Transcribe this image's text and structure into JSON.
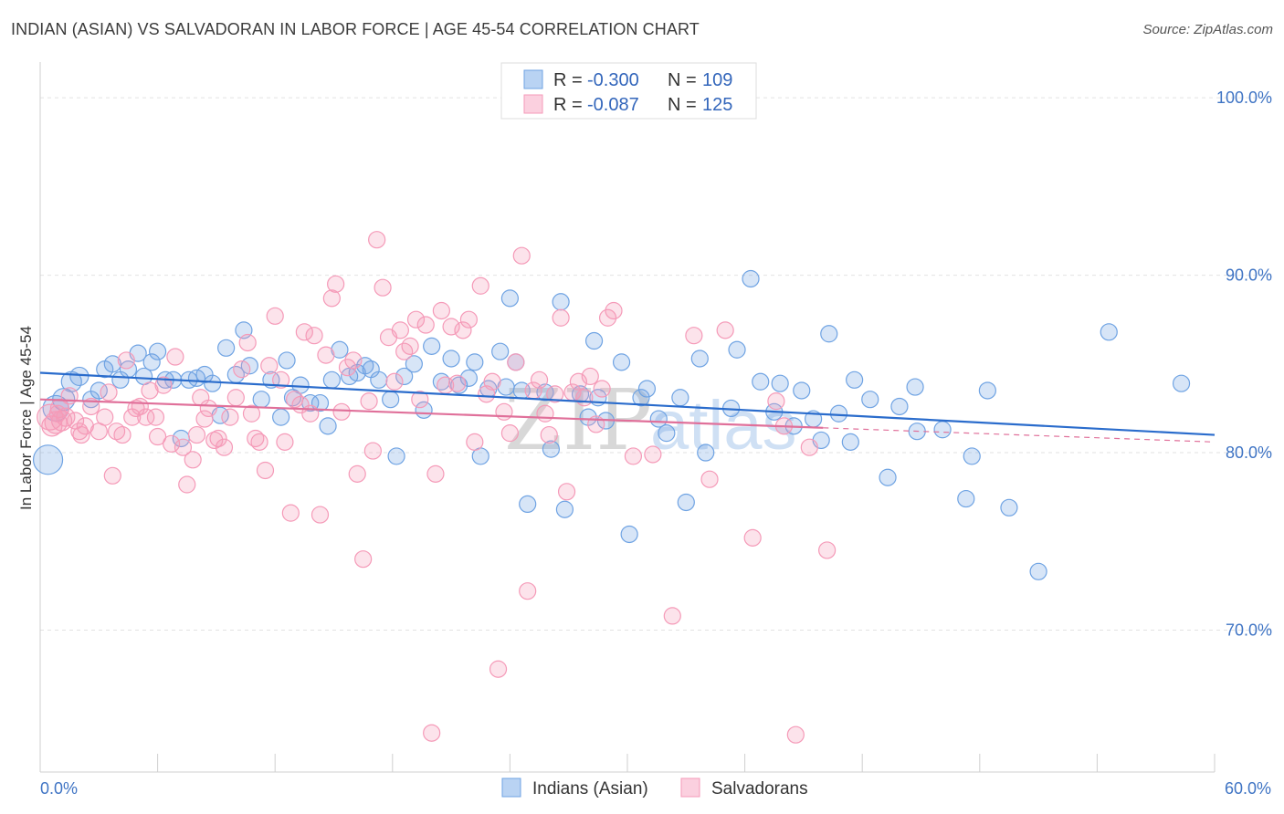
{
  "header": {
    "title": "INDIAN (ASIAN) VS SALVADORAN IN LABOR FORCE | AGE 45-54 CORRELATION CHART",
    "source": "Source: ZipAtlas.com"
  },
  "legend": {
    "series1": {
      "r_label": "R =",
      "r_value": "-0.300",
      "n_label": "N =",
      "n_value": "109"
    },
    "series2": {
      "r_label": "R =",
      "r_value": "-0.087",
      "n_label": "N =",
      "n_value": "125"
    }
  },
  "watermark": {
    "zip": "ZIP",
    "atlas": "atlas"
  },
  "chart_data": {
    "type": "scatter",
    "xlabel": "",
    "ylabel": "In Labor Force | Age 45-54",
    "xlim": [
      0,
      60
    ],
    "ylim": [
      62,
      101.5
    ],
    "x_tick_labels": {
      "min": "0.0%",
      "max": "60.0%"
    },
    "y_ticks": [
      {
        "value": 100,
        "label": "100.0%"
      },
      {
        "value": 90,
        "label": "90.0%"
      },
      {
        "value": 80,
        "label": "80.0%"
      },
      {
        "value": 70,
        "label": "70.0%"
      }
    ],
    "grid": true,
    "legend_position": "top-center",
    "series": [
      {
        "name": "Indians (Asian)",
        "color": "#6fa3e3",
        "line_color": "#2a6ccc",
        "trend": {
          "x": [
            0,
            60
          ],
          "y": [
            84.5,
            81.0
          ]
        },
        "points": [
          [
            0.4,
            79.6,
            16
          ],
          [
            0.8,
            82.5,
            14
          ],
          [
            1.2,
            83.0,
            12
          ],
          [
            1.6,
            84.0,
            11
          ],
          [
            2.0,
            84.3,
            10
          ],
          [
            2.6,
            83.0,
            9
          ],
          [
            3.0,
            83.5,
            9
          ],
          [
            3.3,
            84.7,
            9
          ],
          [
            3.7,
            85.0,
            9
          ],
          [
            4.1,
            84.1,
            9
          ],
          [
            4.5,
            84.7,
            9
          ],
          [
            5.0,
            85.6,
            9
          ],
          [
            5.3,
            84.3,
            9
          ],
          [
            5.7,
            85.1,
            9
          ],
          [
            6.0,
            85.7,
            9
          ],
          [
            6.4,
            84.1,
            9
          ],
          [
            6.8,
            84.1,
            9
          ],
          [
            7.2,
            80.8,
            9
          ],
          [
            7.6,
            84.1,
            9
          ],
          [
            8.0,
            84.2,
            9
          ],
          [
            8.4,
            84.4,
            9
          ],
          [
            8.8,
            83.9,
            9
          ],
          [
            9.2,
            82.1,
            9
          ],
          [
            9.5,
            85.9,
            9
          ],
          [
            10.0,
            84.4,
            9
          ],
          [
            10.4,
            86.9,
            9
          ],
          [
            10.7,
            84.9,
            9
          ],
          [
            11.3,
            83.0,
            9
          ],
          [
            11.8,
            84.1,
            9
          ],
          [
            12.3,
            82.0,
            9
          ],
          [
            12.6,
            85.2,
            9
          ],
          [
            12.9,
            83.1,
            9
          ],
          [
            13.3,
            83.8,
            9
          ],
          [
            13.8,
            82.8,
            9
          ],
          [
            14.3,
            82.8,
            9
          ],
          [
            14.7,
            81.5,
            9
          ],
          [
            14.9,
            84.1,
            9
          ],
          [
            15.3,
            85.8,
            9
          ],
          [
            15.8,
            84.3,
            9
          ],
          [
            16.2,
            84.5,
            9
          ],
          [
            16.6,
            84.9,
            9
          ],
          [
            16.9,
            84.7,
            9
          ],
          [
            17.3,
            84.1,
            9
          ],
          [
            17.9,
            83.0,
            9
          ],
          [
            18.2,
            79.8,
            9
          ],
          [
            18.6,
            84.3,
            9
          ],
          [
            19.1,
            85.0,
            9
          ],
          [
            19.6,
            82.4,
            9
          ],
          [
            20.0,
            86.0,
            9
          ],
          [
            20.5,
            84.0,
            9
          ],
          [
            21.0,
            85.3,
            9
          ],
          [
            21.4,
            83.8,
            9
          ],
          [
            21.9,
            84.2,
            9
          ],
          [
            22.2,
            85.1,
            9
          ],
          [
            22.5,
            79.8,
            9
          ],
          [
            22.9,
            83.6,
            9
          ],
          [
            23.5,
            85.7,
            9
          ],
          [
            23.8,
            83.7,
            9
          ],
          [
            24.0,
            88.7,
            9
          ],
          [
            24.3,
            85.1,
            9
          ],
          [
            24.6,
            83.5,
            9
          ],
          [
            24.9,
            77.1,
            9
          ],
          [
            25.8,
            83.4,
            9
          ],
          [
            26.1,
            80.2,
            9
          ],
          [
            26.6,
            88.5,
            9
          ],
          [
            26.8,
            76.8,
            9
          ],
          [
            27.6,
            83.3,
            9
          ],
          [
            28.0,
            82.0,
            9
          ],
          [
            28.3,
            86.3,
            9
          ],
          [
            28.5,
            83.1,
            9
          ],
          [
            28.9,
            81.8,
            9
          ],
          [
            29.7,
            85.1,
            9
          ],
          [
            30.1,
            75.4,
            9
          ],
          [
            30.7,
            83.1,
            9
          ],
          [
            31.0,
            83.6,
            9
          ],
          [
            31.6,
            81.9,
            9
          ],
          [
            32.0,
            81.1,
            9
          ],
          [
            32.7,
            83.1,
            9
          ],
          [
            33.0,
            77.2,
            9
          ],
          [
            33.7,
            85.3,
            9
          ],
          [
            34.0,
            80.0,
            9
          ],
          [
            35.3,
            82.5,
            9
          ],
          [
            35.6,
            85.8,
            9
          ],
          [
            36.3,
            89.8,
            9
          ],
          [
            36.8,
            84.0,
            9
          ],
          [
            37.5,
            82.3,
            9
          ],
          [
            37.8,
            83.9,
            9
          ],
          [
            38.5,
            81.5,
            9
          ],
          [
            38.9,
            83.5,
            9
          ],
          [
            39.5,
            81.9,
            9
          ],
          [
            39.9,
            80.7,
            9
          ],
          [
            40.3,
            86.7,
            9
          ],
          [
            40.8,
            82.2,
            9
          ],
          [
            41.4,
            80.6,
            9
          ],
          [
            41.6,
            84.1,
            9
          ],
          [
            42.4,
            83.0,
            9
          ],
          [
            43.3,
            78.6,
            9
          ],
          [
            43.9,
            82.6,
            9
          ],
          [
            44.7,
            83.7,
            9
          ],
          [
            44.8,
            81.2,
            9
          ],
          [
            46.1,
            81.3,
            9
          ],
          [
            47.3,
            77.4,
            9
          ],
          [
            47.6,
            79.8,
            9
          ],
          [
            48.4,
            83.5,
            9
          ],
          [
            49.5,
            76.9,
            9
          ],
          [
            51.0,
            73.3,
            9
          ],
          [
            54.6,
            86.8,
            9
          ],
          [
            58.3,
            83.9,
            9
          ]
        ]
      },
      {
        "name": "Salvadorans",
        "color": "#f59ab8",
        "line_color": "#e0709a",
        "trend": {
          "x": [
            0,
            40
          ],
          "y": [
            83.0,
            81.4
          ]
        },
        "trend_dashed": {
          "x": [
            40,
            60
          ],
          "y": [
            81.4,
            80.6
          ]
        },
        "points": [
          [
            0.5,
            82.0,
            14
          ],
          [
            0.8,
            81.7,
            12
          ],
          [
            1.0,
            82.5,
            10
          ],
          [
            1.3,
            82.0,
            10
          ],
          [
            1.5,
            83.2,
            9
          ],
          [
            1.8,
            81.8,
            9
          ],
          [
            2.0,
            81.2,
            9
          ],
          [
            2.3,
            81.5,
            9
          ],
          [
            2.6,
            82.6,
            9
          ],
          [
            3.0,
            81.2,
            9
          ],
          [
            3.3,
            82.0,
            9
          ],
          [
            3.5,
            83.4,
            9
          ],
          [
            3.7,
            78.7,
            9
          ],
          [
            3.9,
            81.2,
            9
          ],
          [
            4.2,
            81.0,
            9
          ],
          [
            4.4,
            85.2,
            9
          ],
          [
            4.7,
            82.0,
            9
          ],
          [
            4.9,
            82.5,
            9
          ],
          [
            5.1,
            82.6,
            9
          ],
          [
            5.4,
            82.0,
            9
          ],
          [
            5.6,
            83.5,
            9
          ],
          [
            5.9,
            82.0,
            9
          ],
          [
            6.0,
            80.9,
            9
          ],
          [
            6.3,
            83.8,
            9
          ],
          [
            6.7,
            80.5,
            9
          ],
          [
            6.9,
            85.4,
            9
          ],
          [
            7.3,
            80.3,
            9
          ],
          [
            7.5,
            78.2,
            9
          ],
          [
            7.8,
            79.6,
            9
          ],
          [
            8.0,
            81.0,
            9
          ],
          [
            8.2,
            83.1,
            9
          ],
          [
            8.4,
            81.9,
            9
          ],
          [
            8.6,
            82.5,
            9
          ],
          [
            8.9,
            80.7,
            9
          ],
          [
            9.1,
            80.8,
            9
          ],
          [
            9.4,
            80.3,
            9
          ],
          [
            9.7,
            82.0,
            9
          ],
          [
            10.0,
            83.1,
            9
          ],
          [
            10.3,
            84.7,
            9
          ],
          [
            10.6,
            86.2,
            9
          ],
          [
            10.8,
            82.2,
            9
          ],
          [
            11.0,
            80.8,
            9
          ],
          [
            11.2,
            80.6,
            9
          ],
          [
            11.5,
            79.0,
            9
          ],
          [
            11.7,
            84.9,
            9
          ],
          [
            12.0,
            87.7,
            9
          ],
          [
            12.3,
            84.1,
            9
          ],
          [
            12.5,
            80.6,
            9
          ],
          [
            12.8,
            76.6,
            9
          ],
          [
            13.0,
            83.0,
            9
          ],
          [
            13.3,
            82.7,
            9
          ],
          [
            13.5,
            86.8,
            9
          ],
          [
            13.8,
            82.2,
            9
          ],
          [
            14.0,
            86.6,
            9
          ],
          [
            14.3,
            76.5,
            9
          ],
          [
            14.6,
            85.5,
            9
          ],
          [
            14.9,
            88.7,
            9
          ],
          [
            15.1,
            89.5,
            9
          ],
          [
            15.4,
            82.3,
            9
          ],
          [
            15.7,
            84.8,
            9
          ],
          [
            16.0,
            85.2,
            9
          ],
          [
            16.2,
            78.8,
            9
          ],
          [
            16.5,
            74.0,
            9
          ],
          [
            16.8,
            82.9,
            9
          ],
          [
            17.0,
            80.1,
            9
          ],
          [
            17.2,
            92.0,
            9
          ],
          [
            17.5,
            89.3,
            9
          ],
          [
            17.8,
            86.5,
            9
          ],
          [
            18.1,
            84.0,
            9
          ],
          [
            18.4,
            86.9,
            9
          ],
          [
            18.6,
            85.7,
            9
          ],
          [
            18.9,
            86.0,
            9
          ],
          [
            19.2,
            87.5,
            9
          ],
          [
            19.4,
            83.0,
            9
          ],
          [
            19.7,
            87.2,
            9
          ],
          [
            20.0,
            64.2,
            9
          ],
          [
            20.2,
            78.8,
            9
          ],
          [
            20.5,
            88.0,
            9
          ],
          [
            20.7,
            83.8,
            9
          ],
          [
            21.0,
            87.1,
            9
          ],
          [
            21.3,
            83.9,
            9
          ],
          [
            21.6,
            86.9,
            9
          ],
          [
            21.9,
            87.5,
            9
          ],
          [
            22.2,
            80.6,
            9
          ],
          [
            22.5,
            89.4,
            9
          ],
          [
            22.8,
            83.3,
            9
          ],
          [
            23.1,
            84.0,
            9
          ],
          [
            23.4,
            67.8,
            9
          ],
          [
            23.7,
            82.3,
            9
          ],
          [
            24.0,
            81.1,
            9
          ],
          [
            24.3,
            85.1,
            9
          ],
          [
            24.6,
            91.1,
            9
          ],
          [
            24.9,
            72.2,
            9
          ],
          [
            25.2,
            83.5,
            9
          ],
          [
            25.5,
            84.1,
            9
          ],
          [
            25.8,
            82.2,
            9
          ],
          [
            26.0,
            81.0,
            9
          ],
          [
            26.3,
            83.3,
            9
          ],
          [
            26.6,
            87.6,
            9
          ],
          [
            26.9,
            77.8,
            9
          ],
          [
            27.2,
            83.4,
            9
          ],
          [
            27.5,
            84.0,
            9
          ],
          [
            27.8,
            83.1,
            9
          ],
          [
            28.1,
            84.3,
            9
          ],
          [
            28.4,
            81.6,
            9
          ],
          [
            28.7,
            83.6,
            9
          ],
          [
            29.0,
            87.6,
            9
          ],
          [
            29.3,
            88.0,
            9
          ],
          [
            30.3,
            79.8,
            9
          ],
          [
            31.3,
            79.9,
            9
          ],
          [
            32.3,
            70.8,
            9
          ],
          [
            33.4,
            86.6,
            9
          ],
          [
            34.2,
            78.5,
            9
          ],
          [
            35.0,
            86.9,
            9
          ],
          [
            36.4,
            75.2,
            9
          ],
          [
            37.6,
            82.9,
            9
          ],
          [
            38.0,
            81.5,
            9
          ],
          [
            38.6,
            64.1,
            9
          ],
          [
            39.3,
            80.3,
            9
          ],
          [
            40.2,
            74.5,
            9
          ],
          [
            0.6,
            81.5,
            11
          ],
          [
            1.1,
            81.8,
            11
          ],
          [
            0.9,
            82.2,
            9
          ],
          [
            2.1,
            81.0,
            9
          ]
        ]
      }
    ]
  },
  "bottom_legend": [
    "Indians (Asian)",
    "Salvadorans"
  ]
}
